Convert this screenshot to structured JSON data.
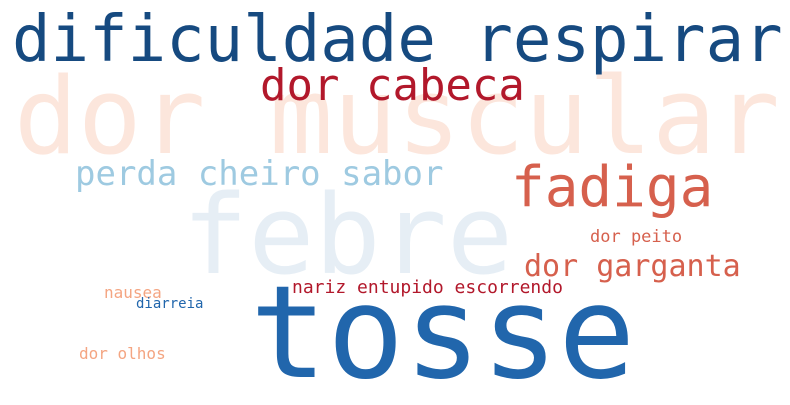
{
  "words": [
    {
      "key": "dor_muscular",
      "text": "dor muscular",
      "color": "#fce6dc"
    },
    {
      "key": "febre",
      "text": "febre",
      "color": "#e6eef5"
    },
    {
      "key": "tosse",
      "text": "tosse",
      "color": "#2166ac"
    },
    {
      "key": "dificuldade_respirar",
      "text": "dificuldade respirar",
      "color": "#164a80"
    },
    {
      "key": "dor_cabeca",
      "text": "dor cabeca",
      "color": "#b2182b"
    },
    {
      "key": "fadiga",
      "text": "fadiga",
      "color": "#d6604d"
    },
    {
      "key": "perda_cheiro_sabor",
      "text": "perda cheiro sabor",
      "color": "#9ecae1"
    },
    {
      "key": "dor_garganta",
      "text": "dor garganta",
      "color": "#d6604d"
    },
    {
      "key": "dor_peito",
      "text": "dor peito",
      "color": "#d6604d"
    },
    {
      "key": "nariz_entupido_escorrendo",
      "text": "nariz entupido escorrendo",
      "color": "#b2182b"
    },
    {
      "key": "nausea",
      "text": "nausea",
      "color": "#f4a582"
    },
    {
      "key": "diarreia",
      "text": "diarreia",
      "color": "#2166ac"
    },
    {
      "key": "dor_olhos",
      "text": "dor olhos",
      "color": "#f4a582"
    }
  ]
}
